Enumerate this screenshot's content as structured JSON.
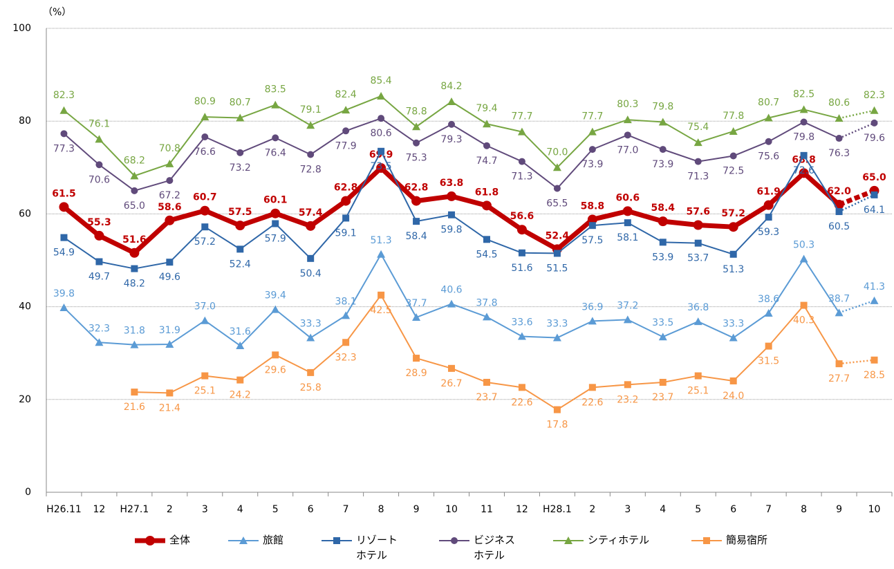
{
  "chart_data": {
    "type": "line",
    "ylabel": "（%）",
    "categories": [
      "H26.11",
      "12",
      "H27.1",
      "2",
      "3",
      "4",
      "5",
      "6",
      "7",
      "8",
      "9",
      "10",
      "11",
      "12",
      "H28.1",
      "2",
      "3",
      "4",
      "5",
      "6",
      "7",
      "8",
      "9",
      "10"
    ],
    "ylim": [
      0,
      100
    ],
    "yticks": [
      0,
      20,
      40,
      60,
      80,
      100
    ],
    "grid": true,
    "series": [
      {
        "name": "全体",
        "color": "#c00000",
        "marker": "circle",
        "width": 7,
        "bold": true,
        "values": [
          61.5,
          55.3,
          51.6,
          58.6,
          60.7,
          57.5,
          60.1,
          57.4,
          62.8,
          69.9,
          62.8,
          63.8,
          61.8,
          56.6,
          52.4,
          58.8,
          60.6,
          58.4,
          57.6,
          57.2,
          61.9,
          68.8,
          62.0,
          65.0
        ],
        "value_labels": [
          "61.5",
          "55.3",
          "51.6",
          "58.6",
          "60.7",
          "57.5",
          "60.1",
          "57.4",
          "62.8",
          "69.9",
          "62.8",
          "63.8",
          "61.8",
          "56.6",
          "52.4",
          "58.8",
          "60.6",
          "58.4",
          "57.6",
          "57.2",
          "61.9",
          "68.8",
          "62.0",
          "65.0"
        ]
      },
      {
        "name": "旅館",
        "color": "#5b9bd5",
        "marker": "triangle",
        "width": 2,
        "values": [
          39.8,
          32.3,
          31.8,
          31.9,
          37.0,
          31.6,
          39.4,
          33.3,
          38.1,
          51.3,
          37.7,
          40.6,
          37.8,
          33.6,
          33.3,
          36.9,
          37.2,
          33.5,
          36.8,
          33.3,
          38.6,
          50.3,
          38.7,
          41.3
        ],
        "value_labels": [
          "39.8",
          "32.3",
          "31.8",
          "31.9",
          "37.0",
          "31.6",
          "39.4",
          "33.3",
          "38.1",
          "51.3",
          "37.7",
          "40.6",
          "37.8",
          "33.6",
          "33.3",
          "36.9",
          "37.2",
          "33.5",
          "36.8",
          "33.3",
          "38.6",
          "50.3",
          "38.7",
          "41.3"
        ]
      },
      {
        "name": "リゾート\nホテル",
        "color": "#2f67a8",
        "marker": "square",
        "width": 2,
        "values": [
          54.9,
          49.7,
          48.2,
          49.6,
          57.2,
          52.4,
          57.9,
          50.4,
          59.1,
          73.5,
          58.4,
          59.8,
          54.5,
          51.6,
          51.5,
          57.5,
          58.1,
          53.9,
          53.7,
          51.3,
          59.3,
          72.6,
          60.5,
          64.1
        ],
        "value_labels": [
          "54.9",
          "49.7",
          "48.2",
          "49.6",
          "57.2",
          "52.4",
          "57.9",
          "50.4",
          "59.1",
          "73.5",
          "58.4",
          "59.8",
          "54.5",
          "51.6",
          "51.5",
          "57.5",
          "58.1",
          "53.9",
          "53.7",
          "51.3",
          "59.3",
          "72.6",
          "60.5",
          "64.1"
        ]
      },
      {
        "name": "ビジネス\nホテル",
        "color": "#604a7b",
        "marker": "circle",
        "width": 2,
        "values": [
          77.3,
          70.6,
          65.0,
          67.2,
          76.6,
          73.2,
          76.4,
          72.8,
          77.9,
          80.6,
          75.3,
          79.3,
          74.7,
          71.3,
          65.5,
          73.9,
          77.0,
          73.9,
          71.3,
          72.5,
          75.6,
          79.8,
          76.3,
          79.6
        ],
        "value_labels": [
          "77.3",
          "70.6",
          "65.0",
          "67.2",
          "76.6",
          "73.2",
          "76.4",
          "72.8",
          "77.9",
          "80.6",
          "75.3",
          "79.3",
          "74.7",
          "71.3",
          "65.5",
          "73.9",
          "77.0",
          "73.9",
          "71.3",
          "72.5",
          "75.6",
          "79.8",
          "76.3",
          "79.6"
        ]
      },
      {
        "name": "シティホテル",
        "color": "#77a642",
        "marker": "triangle",
        "width": 2,
        "values": [
          82.3,
          76.1,
          68.2,
          70.8,
          80.9,
          80.7,
          83.5,
          79.1,
          82.4,
          85.4,
          78.8,
          84.2,
          79.4,
          77.7,
          70.0,
          77.7,
          80.3,
          79.8,
          75.4,
          77.8,
          80.7,
          82.5,
          80.6,
          82.3
        ],
        "value_labels": [
          "82.3",
          "76.1",
          "68.2",
          "70.8",
          "80.9",
          "80.7",
          "83.5",
          "79.1",
          "82.4",
          "85.4",
          "78.8",
          "84.2",
          "79.4",
          "77.7",
          "70.0",
          "77.7",
          "80.3",
          "79.8",
          "75.4",
          "77.8",
          "80.7",
          "82.5",
          "80.6",
          "82.3"
        ]
      },
      {
        "name": "簡易宿所",
        "color": "#f79646",
        "marker": "square",
        "width": 2,
        "values": [
          null,
          null,
          21.6,
          21.4,
          25.1,
          24.2,
          29.6,
          25.8,
          32.3,
          42.5,
          28.9,
          26.7,
          23.7,
          22.6,
          17.8,
          22.6,
          23.2,
          23.7,
          25.1,
          24.0,
          31.5,
          40.3,
          27.7,
          28.5
        ],
        "value_labels": [
          null,
          null,
          "21.6",
          "21.4",
          "25.1",
          "24.2",
          "29.6",
          "25.8",
          "32.3",
          "42.5",
          "28.9",
          "26.7",
          "23.7",
          "22.6",
          "17.8",
          "22.6",
          "23.2",
          "23.7",
          "25.1",
          "24.0",
          "31.5",
          "40.3",
          "27.7",
          "28.5"
        ]
      }
    ]
  }
}
